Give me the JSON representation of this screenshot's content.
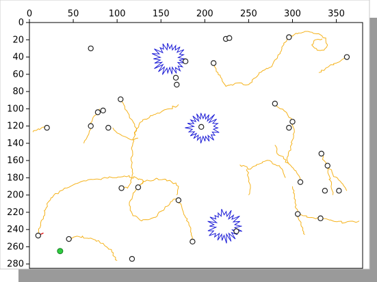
{
  "chart_data": {
    "type": "scatter",
    "title": "",
    "xlabel": "",
    "ylabel": "",
    "xlim": [
      0,
      380
    ],
    "ylim": [
      285,
      0
    ],
    "y_axis_inverted": true,
    "x_axis_position": "top",
    "grid": false,
    "x_ticks": [
      "0",
      "50",
      "100",
      "150",
      "200",
      "250",
      "300",
      "350"
    ],
    "y_ticks": [
      "0",
      "20",
      "40",
      "60",
      "80",
      "100",
      "120",
      "140",
      "160",
      "180",
      "200",
      "220",
      "240",
      "260",
      "280"
    ],
    "colors": {
      "trajectory": "#f5b21a",
      "cluster": "#1b1bd6",
      "marker_edge": "#222222",
      "green_marker": "#2ecc40",
      "red_segment": "#e02020",
      "plot_border": "#000000",
      "frame_shadow": "#9a9a9a"
    },
    "points": [
      {
        "x": 70,
        "y": 30
      },
      {
        "x": 167,
        "y": 64
      },
      {
        "x": 168,
        "y": 72
      },
      {
        "x": 178,
        "y": 45
      },
      {
        "x": 210,
        "y": 47
      },
      {
        "x": 224,
        "y": 19
      },
      {
        "x": 228,
        "y": 18
      },
      {
        "x": 296,
        "y": 17
      },
      {
        "x": 362,
        "y": 40
      },
      {
        "x": 104,
        "y": 89
      },
      {
        "x": 78,
        "y": 104
      },
      {
        "x": 84,
        "y": 102
      },
      {
        "x": 20,
        "y": 122
      },
      {
        "x": 70,
        "y": 120
      },
      {
        "x": 90,
        "y": 122
      },
      {
        "x": 196,
        "y": 121
      },
      {
        "x": 280,
        "y": 94
      },
      {
        "x": 300,
        "y": 115
      },
      {
        "x": 296,
        "y": 122
      },
      {
        "x": 333,
        "y": 152
      },
      {
        "x": 340,
        "y": 166
      },
      {
        "x": 309,
        "y": 185
      },
      {
        "x": 337,
        "y": 195
      },
      {
        "x": 353,
        "y": 195
      },
      {
        "x": 105,
        "y": 192
      },
      {
        "x": 124,
        "y": 191
      },
      {
        "x": 170,
        "y": 206
      },
      {
        "x": 306,
        "y": 222
      },
      {
        "x": 332,
        "y": 227
      },
      {
        "x": 236,
        "y": 242
      },
      {
        "x": 186,
        "y": 254
      },
      {
        "x": 45,
        "y": 251
      },
      {
        "x": 117,
        "y": 274
      },
      {
        "x": 10,
        "y": 247
      }
    ],
    "green_points": [
      {
        "x": 35,
        "y": 265
      }
    ],
    "red_segments": [
      [
        [
          10,
          247
        ],
        [
          16,
          244
        ]
      ]
    ],
    "clusters": [
      {
        "cx": 160,
        "cy": 42,
        "r": 18
      },
      {
        "cx": 198,
        "cy": 122,
        "r": 17
      },
      {
        "cx": 222,
        "cy": 236,
        "r": 18
      }
    ],
    "trajectories": [
      [
        [
          210,
          47
        ],
        [
          215,
          58
        ],
        [
          220,
          68
        ],
        [
          224,
          74
        ],
        [
          230,
          72
        ],
        [
          240,
          70
        ],
        [
          250,
          72
        ],
        [
          258,
          64
        ],
        [
          262,
          58
        ],
        [
          268,
          55
        ],
        [
          274,
          52
        ],
        [
          278,
          47
        ],
        [
          282,
          42
        ],
        [
          286,
          36
        ],
        [
          288,
          30
        ],
        [
          290,
          24
        ],
        [
          296,
          17
        ],
        [
          302,
          14
        ],
        [
          310,
          12
        ],
        [
          320,
          11
        ],
        [
          330,
          13
        ],
        [
          338,
          18
        ],
        [
          340,
          26
        ],
        [
          336,
          32
        ],
        [
          328,
          32
        ],
        [
          322,
          26
        ],
        [
          326,
          20
        ],
        [
          334,
          19
        ]
      ],
      [
        [
          330,
          58
        ],
        [
          340,
          52
        ],
        [
          350,
          47
        ],
        [
          362,
          40
        ]
      ],
      [
        [
          104,
          89
        ],
        [
          108,
          96
        ],
        [
          112,
          104
        ],
        [
          116,
          112
        ],
        [
          120,
          118
        ],
        [
          122,
          124
        ],
        [
          120,
          130
        ]
      ],
      [
        [
          95,
          122
        ],
        [
          100,
          128
        ],
        [
          108,
          132
        ],
        [
          116,
          136
        ],
        [
          124,
          134
        ]
      ],
      [
        [
          122,
          124
        ],
        [
          126,
          116
        ],
        [
          132,
          112
        ],
        [
          140,
          108
        ],
        [
          150,
          104
        ],
        [
          160,
          100
        ],
        [
          170,
          95
        ]
      ],
      [
        [
          20,
          122
        ],
        [
          14,
          122
        ],
        [
          8,
          125
        ],
        [
          4,
          127
        ]
      ],
      [
        [
          70,
          120
        ],
        [
          72,
          112
        ],
        [
          78,
          106
        ],
        [
          80,
          100
        ]
      ],
      [
        [
          70,
          120
        ],
        [
          68,
          128
        ],
        [
          64,
          136
        ],
        [
          62,
          140
        ]
      ],
      [
        [
          122,
          124
        ],
        [
          118,
          140
        ],
        [
          116,
          160
        ],
        [
          118,
          175
        ],
        [
          116,
          185
        ],
        [
          112,
          192
        ],
        [
          105,
          192
        ]
      ],
      [
        [
          10,
          250
        ],
        [
          12,
          238
        ],
        [
          16,
          225
        ],
        [
          20,
          210
        ],
        [
          28,
          200
        ],
        [
          40,
          192
        ],
        [
          56,
          186
        ],
        [
          72,
          182
        ],
        [
          90,
          180
        ],
        [
          108,
          178
        ],
        [
          122,
          180
        ],
        [
          130,
          184
        ],
        [
          124,
          191
        ]
      ],
      [
        [
          124,
          191
        ],
        [
          118,
          200
        ],
        [
          114,
          212
        ],
        [
          118,
          224
        ],
        [
          128,
          230
        ],
        [
          142,
          226
        ],
        [
          154,
          216
        ],
        [
          164,
          205
        ],
        [
          170,
          206
        ],
        [
          178,
          226
        ],
        [
          184,
          240
        ],
        [
          186,
          254
        ]
      ],
      [
        [
          124,
          191
        ],
        [
          132,
          184
        ],
        [
          146,
          181
        ],
        [
          160,
          183
        ],
        [
          170,
          190
        ],
        [
          168,
          200
        ]
      ],
      [
        [
          45,
          251
        ],
        [
          56,
          248
        ],
        [
          70,
          250
        ],
        [
          84,
          256
        ],
        [
          94,
          266
        ],
        [
          100,
          276
        ]
      ],
      [
        [
          280,
          94
        ],
        [
          286,
          100
        ],
        [
          294,
          106
        ],
        [
          300,
          115
        ],
        [
          302,
          124
        ],
        [
          300,
          136
        ],
        [
          298,
          146
        ],
        [
          294,
          156
        ],
        [
          296,
          164
        ]
      ],
      [
        [
          280,
          142
        ],
        [
          282,
          150
        ],
        [
          290,
          158
        ],
        [
          296,
          164
        ],
        [
          306,
          176
        ],
        [
          309,
          185
        ]
      ],
      [
        [
          240,
          165
        ],
        [
          252,
          170
        ],
        [
          262,
          164
        ],
        [
          274,
          160
        ],
        [
          286,
          168
        ],
        [
          292,
          180
        ]
      ],
      [
        [
          248,
          170
        ],
        [
          250,
          180
        ],
        [
          252,
          192
        ],
        [
          250,
          200
        ]
      ],
      [
        [
          300,
          190
        ],
        [
          302,
          204
        ],
        [
          306,
          222
        ],
        [
          310,
          236
        ],
        [
          314,
          246
        ]
      ],
      [
        [
          306,
          222
        ],
        [
          322,
          226
        ],
        [
          332,
          227
        ],
        [
          346,
          230
        ],
        [
          360,
          232
        ],
        [
          376,
          230
        ]
      ],
      [
        [
          333,
          152
        ],
        [
          336,
          160
        ],
        [
          340,
          166
        ],
        [
          346,
          176
        ],
        [
          356,
          186
        ],
        [
          362,
          195
        ]
      ],
      [
        [
          340,
          166
        ],
        [
          342,
          178
        ],
        [
          344,
          190
        ],
        [
          346,
          200
        ]
      ]
    ]
  }
}
